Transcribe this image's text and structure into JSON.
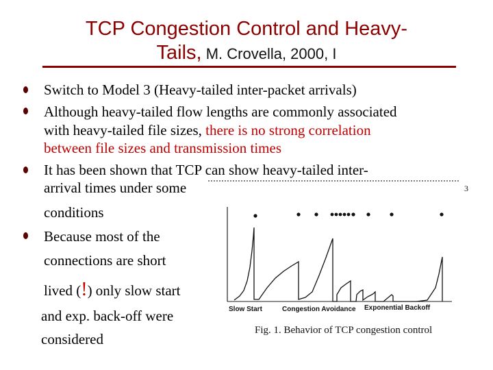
{
  "title": {
    "line1": "TCP Congestion Control and Heavy-",
    "line2_main": "Tails,",
    "line2_cite": " M. Crovella, 2000, I"
  },
  "bullets": {
    "b1": "Switch to Model 3 (Heavy-tailed inter-packet arrivals)",
    "b2_line1": "Although heavy-tailed flow lengths are commonly associated",
    "b2_line2_a": "with heavy-tailed file sizes, ",
    "b2_line2_b": "there is no strong correlation",
    "b2_line3": "between file sizes and transmission times",
    "b3_line1": "It has been shown that TCP can show heavy-tailed inter-",
    "b3_line2": "arrival times under some",
    "b3_line3": "conditions",
    "b4_line1": "Because most of the",
    "b4_line2": "connections are short",
    "b4_line3_a": "lived (",
    "b4_line3_excl": "!",
    "b4_line3_b": ") only slow start",
    "b4_line4": "and exp. back-off were",
    "b4_line5": "considered"
  },
  "figure": {
    "corner_number": "3",
    "phase_labels": [
      "Slow Start",
      "Congestion Avoidance",
      "Exponential Backoff"
    ],
    "caption": "Fig. 1.  Behavior of TCP congestion control"
  },
  "colors": {
    "title": "#8b0000",
    "highlight": "#c00000",
    "bullet": "#5b0000"
  }
}
